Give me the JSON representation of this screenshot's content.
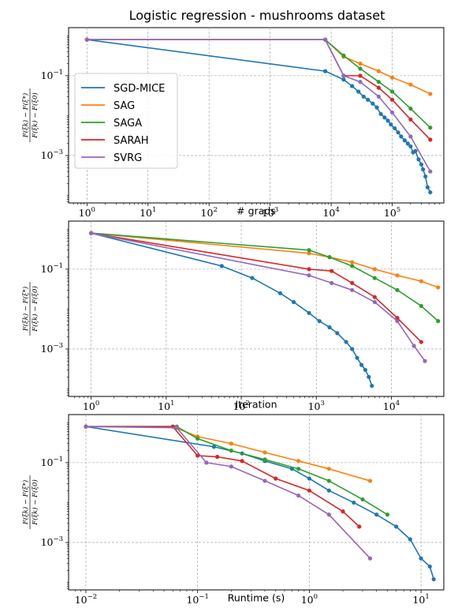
{
  "title": "Logistic regression - mushrooms dataset",
  "legend": {
    "placement": "left",
    "entries": [
      "SGD-MICE",
      "SAG",
      "SAGA",
      "SARAH",
      "SVRG"
    ]
  },
  "colors": {
    "SGD-MICE": "#1f77b4",
    "SAG": "#ff7f0e",
    "SAGA": "#2ca02c",
    "SARAH": "#d62728",
    "SVRG": "#9467bd"
  },
  "ylabel": {
    "numerator": "F(ξk) − F(ξ*)",
    "denominator": "F(ξk) − F(ξ0)"
  },
  "chart_data": [
    {
      "type": "line",
      "xlabel": "# grads",
      "xscale": "log",
      "yscale": "log",
      "xlim": [
        0.5,
        700000
      ],
      "ylim": [
        6.5e-05,
        1.6
      ],
      "xticks": [
        {
          "v": 1,
          "m": "10",
          "e": "0"
        },
        {
          "v": 10,
          "m": "10",
          "e": "1"
        },
        {
          "v": 100,
          "m": "10",
          "e": "2"
        },
        {
          "v": 1000,
          "m": "10",
          "e": "3"
        },
        {
          "v": 10000,
          "m": "10",
          "e": "4"
        },
        {
          "v": 100000,
          "m": "10",
          "e": "5"
        }
      ],
      "yticks": [
        {
          "v": 0.1,
          "m": "10",
          "e": "−1"
        },
        {
          "v": 0.001,
          "m": "10",
          "e": "−3"
        }
      ],
      "grid": true,
      "series": [
        {
          "name": "SGD-MICE",
          "points": [
            [
              1,
              0.8
            ],
            [
              8000,
              0.13
            ],
            [
              16000,
              0.08
            ],
            [
              22000,
              0.055
            ],
            [
              28000,
              0.04
            ],
            [
              34000,
              0.03
            ],
            [
              40000,
              0.025
            ],
            [
              48000,
              0.02
            ],
            [
              56000,
              0.016
            ],
            [
              65000,
              0.011
            ],
            [
              75000,
              0.009
            ],
            [
              85000,
              0.0075
            ],
            [
              95000,
              0.006
            ],
            [
              110000,
              0.0048
            ],
            [
              125000,
              0.0038
            ],
            [
              140000,
              0.003
            ],
            [
              160000,
              0.0024
            ],
            [
              180000,
              0.002
            ],
            [
              200000,
              0.0017
            ],
            [
              220000,
              0.0012
            ],
            [
              240000,
              0.0013
            ],
            [
              270000,
              0.0008
            ],
            [
              300000,
              0.0006
            ],
            [
              320000,
              0.00045
            ],
            [
              350000,
              0.0003
            ],
            [
              380000,
              0.00016
            ],
            [
              420000,
              0.00012
            ]
          ]
        },
        {
          "name": "SAG",
          "points": [
            [
              1,
              0.8
            ],
            [
              8000,
              0.8
            ],
            [
              16000,
              0.3
            ],
            [
              30000,
              0.2
            ],
            [
              60000,
              0.13
            ],
            [
              100000,
              0.09
            ],
            [
              200000,
              0.06
            ],
            [
              420000,
              0.035
            ]
          ]
        },
        {
          "name": "SAGA",
          "points": [
            [
              1,
              0.8
            ],
            [
              8000,
              0.8
            ],
            [
              16000,
              0.32
            ],
            [
              30000,
              0.15
            ],
            [
              60000,
              0.07
            ],
            [
              100000,
              0.04
            ],
            [
              200000,
              0.015
            ],
            [
              420000,
              0.005
            ]
          ]
        },
        {
          "name": "SARAH",
          "points": [
            [
              1,
              0.8
            ],
            [
              8000,
              0.8
            ],
            [
              16000,
              0.1
            ],
            [
              30000,
              0.1
            ],
            [
              60000,
              0.05
            ],
            [
              100000,
              0.025
            ],
            [
              200000,
              0.008
            ],
            [
              420000,
              0.0025
            ]
          ]
        },
        {
          "name": "SVRG",
          "points": [
            [
              1,
              0.8
            ],
            [
              8000,
              0.8
            ],
            [
              16000,
              0.1
            ],
            [
              30000,
              0.07
            ],
            [
              60000,
              0.03
            ],
            [
              100000,
              0.012
            ],
            [
              200000,
              0.003
            ],
            [
              420000,
              0.0004
            ]
          ]
        }
      ]
    },
    {
      "type": "line",
      "xlabel": "Iteration",
      "xscale": "log",
      "yscale": "log",
      "xlim": [
        0.5,
        50000
      ],
      "ylim": [
        6.5e-05,
        1.6
      ],
      "xticks": [
        {
          "v": 1,
          "m": "10",
          "e": "0"
        },
        {
          "v": 10,
          "m": "10",
          "e": "1"
        },
        {
          "v": 100,
          "m": "10",
          "e": "2"
        },
        {
          "v": 1000,
          "m": "10",
          "e": "3"
        },
        {
          "v": 10000,
          "m": "10",
          "e": "4"
        }
      ],
      "yticks": [
        {
          "v": 0.1,
          "m": "10",
          "e": "−1"
        },
        {
          "v": 0.001,
          "m": "10",
          "e": "−3"
        }
      ],
      "grid": true,
      "series": [
        {
          "name": "SGD-MICE",
          "points": [
            [
              1,
              0.8
            ],
            [
              55,
              0.12
            ],
            [
              140,
              0.06
            ],
            [
              330,
              0.025
            ],
            [
              500,
              0.015
            ],
            [
              800,
              0.008
            ],
            [
              1100,
              0.005
            ],
            [
              1500,
              0.0035
            ],
            [
              1900,
              0.0025
            ],
            [
              2500,
              0.0015
            ],
            [
              3000,
              0.001
            ],
            [
              3500,
              0.0006
            ],
            [
              4000,
              0.0004
            ],
            [
              4500,
              0.0003
            ],
            [
              5000,
              0.0002
            ],
            [
              5500,
              0.00012
            ]
          ]
        },
        {
          "name": "SAG",
          "points": [
            [
              1,
              0.8
            ],
            [
              800,
              0.25
            ],
            [
              1500,
              0.2
            ],
            [
              3000,
              0.15
            ],
            [
              6000,
              0.1
            ],
            [
              12000,
              0.07
            ],
            [
              25000,
              0.05
            ],
            [
              42000,
              0.035
            ]
          ]
        },
        {
          "name": "SAGA",
          "points": [
            [
              1,
              0.8
            ],
            [
              800,
              0.3
            ],
            [
              1500,
              0.2
            ],
            [
              3000,
              0.12
            ],
            [
              6000,
              0.06
            ],
            [
              12000,
              0.03
            ],
            [
              25000,
              0.012
            ],
            [
              42000,
              0.005
            ]
          ]
        },
        {
          "name": "SARAH",
          "points": [
            [
              1,
              0.8
            ],
            [
              800,
              0.1
            ],
            [
              1600,
              0.09
            ],
            [
              3000,
              0.045
            ],
            [
              6000,
              0.02
            ],
            [
              12000,
              0.006
            ],
            [
              25000,
              0.0015
            ]
          ]
        },
        {
          "name": "SVRG",
          "points": [
            [
              1,
              0.8
            ],
            [
              800,
              0.07
            ],
            [
              1600,
              0.045
            ],
            [
              3000,
              0.03
            ],
            [
              6000,
              0.015
            ],
            [
              12000,
              0.005
            ],
            [
              20000,
              0.0012
            ],
            [
              28000,
              0.0005
            ]
          ]
        }
      ]
    },
    {
      "type": "line",
      "xlabel": "Runtime (s)",
      "xscale": "log",
      "yscale": "log",
      "xlim": [
        0.007,
        16
      ],
      "ylim": [
        6.5e-05,
        1.6
      ],
      "xticks": [
        {
          "v": 0.01,
          "m": "10",
          "e": "−2"
        },
        {
          "v": 0.1,
          "m": "10",
          "e": "−1"
        },
        {
          "v": 1,
          "m": "10",
          "e": "0"
        },
        {
          "v": 10,
          "m": "10",
          "e": "1"
        }
      ],
      "yticks": [
        {
          "v": 0.1,
          "m": "10",
          "e": "−1"
        },
        {
          "v": 0.001,
          "m": "10",
          "e": "−3"
        }
      ],
      "grid": true,
      "series": [
        {
          "name": "SGD-MICE",
          "points": [
            [
              0.01,
              0.8
            ],
            [
              0.14,
              0.25
            ],
            [
              0.25,
              0.17
            ],
            [
              0.4,
              0.11
            ],
            [
              0.7,
              0.07
            ],
            [
              1.0,
              0.04
            ],
            [
              1.5,
              0.02
            ],
            [
              2.5,
              0.01
            ],
            [
              4.0,
              0.005
            ],
            [
              6.0,
              0.0025
            ],
            [
              8.0,
              0.0012
            ],
            [
              10.0,
              0.0004
            ],
            [
              12.0,
              0.00025
            ],
            [
              13.0,
              0.00012
            ]
          ]
        },
        {
          "name": "SAG",
          "points": [
            [
              0.01,
              0.8
            ],
            [
              0.06,
              0.8
            ],
            [
              0.1,
              0.45
            ],
            [
              0.2,
              0.3
            ],
            [
              0.4,
              0.18
            ],
            [
              0.8,
              0.11
            ],
            [
              1.5,
              0.07
            ],
            [
              3.5,
              0.035
            ]
          ]
        },
        {
          "name": "SAGA",
          "points": [
            [
              0.01,
              0.8
            ],
            [
              0.065,
              0.8
            ],
            [
              0.1,
              0.4
            ],
            [
              0.2,
              0.2
            ],
            [
              0.4,
              0.12
            ],
            [
              0.8,
              0.07
            ],
            [
              1.5,
              0.035
            ],
            [
              3.0,
              0.012
            ],
            [
              5.0,
              0.005
            ]
          ]
        },
        {
          "name": "SARAH",
          "points": [
            [
              0.01,
              0.8
            ],
            [
              0.06,
              0.8
            ],
            [
              0.1,
              0.15
            ],
            [
              0.15,
              0.14
            ],
            [
              0.25,
              0.11
            ],
            [
              0.5,
              0.04
            ],
            [
              1.0,
              0.02
            ],
            [
              2.0,
              0.006
            ],
            [
              2.8,
              0.0025
            ]
          ]
        },
        {
          "name": "SVRG",
          "points": [
            [
              0.01,
              0.8
            ],
            [
              0.065,
              0.75
            ],
            [
              0.12,
              0.1
            ],
            [
              0.2,
              0.08
            ],
            [
              0.4,
              0.035
            ],
            [
              0.8,
              0.015
            ],
            [
              1.5,
              0.005
            ],
            [
              3.5,
              0.0004
            ]
          ]
        }
      ]
    }
  ]
}
